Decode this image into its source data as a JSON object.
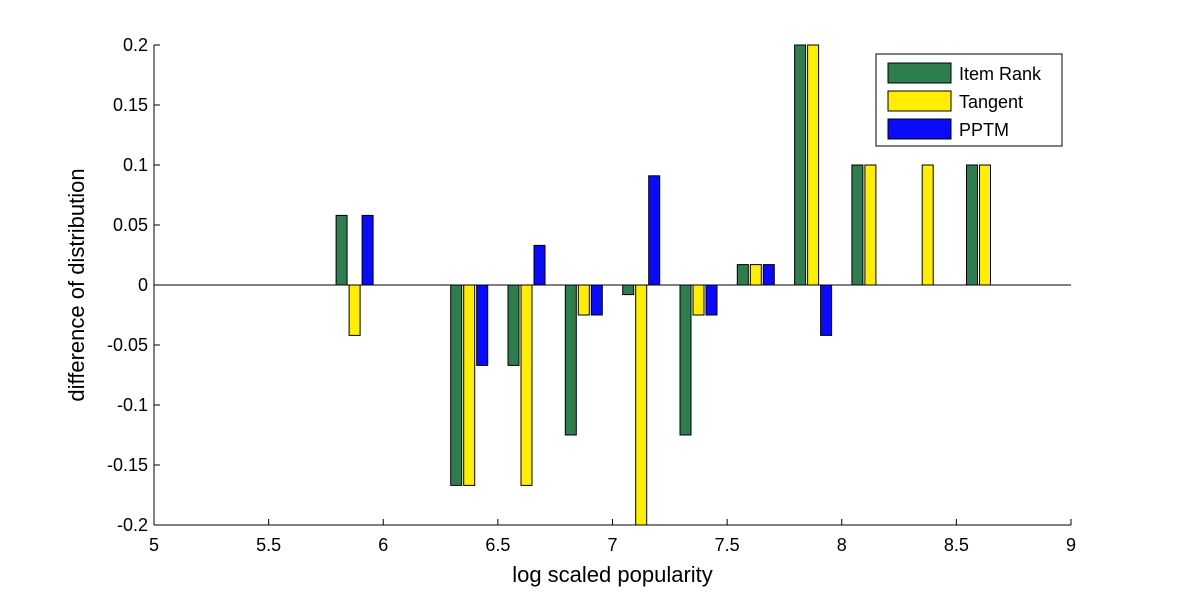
{
  "chart_data": {
    "type": "bar",
    "title": "",
    "xlabel": "log scaled popularity",
    "ylabel": "difference of distribution",
    "xlim": [
      5,
      9
    ],
    "ylim": [
      -0.2,
      0.2
    ],
    "x_ticks": [
      "5",
      "5.5",
      "6",
      "6.5",
      "7",
      "7.5",
      "8",
      "8.5",
      "9"
    ],
    "y_ticks": [
      "0.2",
      "0.15",
      "0.1",
      "0.05",
      "0",
      "-0.05",
      "-0.1",
      "-0.15",
      "-0.2"
    ],
    "x": [
      5.875,
      6.375,
      6.625,
      6.875,
      7.125,
      7.375,
      7.625,
      7.875,
      8.125,
      8.375,
      8.625
    ],
    "series": [
      {
        "name": "Item Rank",
        "color": "#2e7d4f",
        "values": [
          0.058,
          -0.167,
          -0.067,
          -0.125,
          -0.008,
          -0.125,
          0.017,
          0.2,
          0.1,
          0,
          0.1
        ]
      },
      {
        "name": "Tangent",
        "color": "#ffee00",
        "values": [
          -0.042,
          -0.167,
          -0.167,
          -0.025,
          -0.2,
          -0.025,
          0.017,
          0.2,
          0.1,
          0.1,
          0.1
        ]
      },
      {
        "name": "PPTM",
        "color": "#0a0aff",
        "values": [
          0.058,
          -0.067,
          0.033,
          -0.025,
          0.091,
          -0.025,
          0.017,
          -0.042,
          0,
          0,
          0
        ]
      }
    ],
    "grid": false,
    "legend_position": "top-right"
  }
}
